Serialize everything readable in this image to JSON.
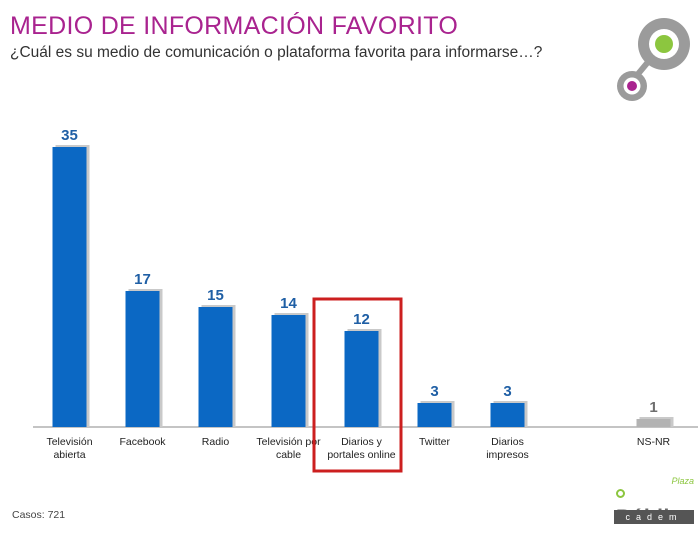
{
  "header": {
    "title": "MEDIO DE INFORMACIÓN FAVORITO",
    "subtitle": "¿Cuál es su medio de comunicación o plataforma favorita para informarse…?"
  },
  "footer": {
    "cases": "Casos: 721",
    "brand_plaza": "Plaza",
    "brand_publica": "Pública",
    "brand_cadem": "cadem"
  },
  "colors": {
    "title": "#a9238f",
    "bar": "#0b68c4",
    "bar_gray": "#b3b3b3",
    "label_blue": "#1f5fa5",
    "highlight": "#cc1f1f",
    "logo_green": "#8cc63f",
    "logo_purple": "#a9238f"
  },
  "chart_data": {
    "type": "bar",
    "categories": [
      [
        "Televisión",
        "abierta"
      ],
      [
        "Facebook"
      ],
      [
        "Radio"
      ],
      [
        "Televisión por",
        "cable"
      ],
      [
        "Diarios y",
        "portales online"
      ],
      [
        "Twitter"
      ],
      [
        "Diarios",
        "impresos"
      ],
      [
        ""
      ],
      [
        "NS-NR"
      ]
    ],
    "values": [
      35,
      17,
      15,
      14,
      12,
      3,
      3,
      null,
      1
    ],
    "gray_indices": [
      8
    ],
    "highlight_index": 4,
    "ylim": [
      0,
      36
    ],
    "grid": false,
    "legend": "none"
  }
}
